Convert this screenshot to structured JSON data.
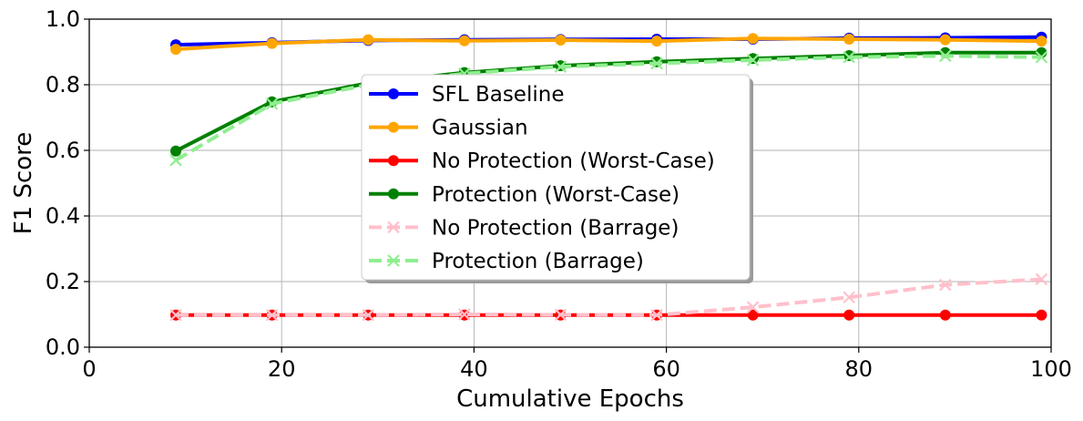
{
  "chart_data": {
    "type": "line",
    "xlabel": "Cumulative Epochs",
    "ylabel": "F1 Score",
    "xlim": [
      0,
      100
    ],
    "ylim": [
      0.0,
      1.0
    ],
    "xticks": [
      "0",
      "20",
      "40",
      "60",
      "80",
      "100"
    ],
    "yticks": [
      "0.0",
      "0.2",
      "0.4",
      "0.6",
      "0.8",
      "1.0"
    ],
    "grid": true,
    "legend_position": "center",
    "series": [
      {
        "name": "SFL Baseline",
        "color": "#0000ff",
        "marker": "circle",
        "dashed": false,
        "x": [
          9,
          19,
          29,
          39,
          49,
          59,
          69,
          79,
          89,
          99
        ],
        "y": [
          0.922,
          0.928,
          0.935,
          0.937,
          0.938,
          0.939,
          0.939,
          0.942,
          0.943,
          0.945
        ]
      },
      {
        "name": "Gaussian",
        "color": "#ffa500",
        "marker": "circle",
        "dashed": false,
        "x": [
          9,
          19,
          29,
          39,
          49,
          59,
          69,
          79,
          89,
          99
        ],
        "y": [
          0.908,
          0.926,
          0.937,
          0.934,
          0.936,
          0.933,
          0.941,
          0.939,
          0.937,
          0.933
        ]
      },
      {
        "name": "No Protection (Worst-Case)",
        "color": "#ff0000",
        "marker": "circle",
        "dashed": false,
        "x": [
          9,
          19,
          29,
          39,
          49,
          59,
          69,
          79,
          89,
          99
        ],
        "y": [
          0.098,
          0.098,
          0.098,
          0.098,
          0.098,
          0.098,
          0.098,
          0.098,
          0.098,
          0.098
        ]
      },
      {
        "name": "Protection (Worst-Case)",
        "color": "#008000",
        "marker": "circle",
        "dashed": false,
        "x": [
          9,
          19,
          29,
          39,
          49,
          59,
          69,
          79,
          89,
          99
        ],
        "y": [
          0.598,
          0.748,
          0.805,
          0.837,
          0.858,
          0.87,
          0.88,
          0.889,
          0.898,
          0.898
        ]
      },
      {
        "name": "No Protection (Barrage)",
        "color": "#ffc0cb",
        "marker": "x",
        "dashed": true,
        "x": [
          9,
          19,
          29,
          39,
          49,
          59,
          69,
          79,
          89,
          99
        ],
        "y": [
          0.098,
          0.098,
          0.098,
          0.1,
          0.099,
          0.098,
          0.122,
          0.152,
          0.19,
          0.207
        ]
      },
      {
        "name": "Protection (Barrage)",
        "color": "#90ee90",
        "marker": "x",
        "dashed": true,
        "x": [
          9,
          19,
          29,
          39,
          49,
          59,
          69,
          79,
          89,
          99
        ],
        "y": [
          0.57,
          0.742,
          0.8,
          0.834,
          0.855,
          0.865,
          0.875,
          0.884,
          0.888,
          0.884
        ]
      }
    ]
  }
}
